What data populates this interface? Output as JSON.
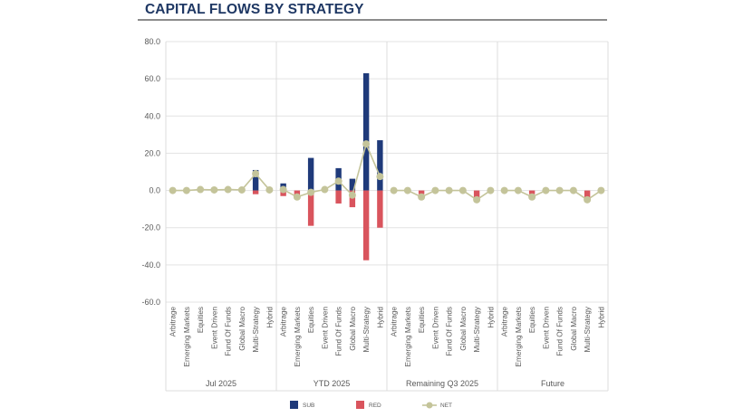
{
  "title": "CAPITAL FLOWS BY STRATEGY",
  "chart_data": {
    "type": "bar",
    "title": "CAPITAL FLOWS BY STRATEGY",
    "xlabel": "",
    "ylabel": "",
    "ylim": [
      -60,
      80
    ],
    "yticks": [
      80,
      60,
      40,
      20,
      0,
      -20,
      -40,
      -60
    ],
    "ytick_labels": [
      "80.0",
      "60.0",
      "40.0",
      "20.0",
      "0.0",
      "-20.0",
      "-40.0",
      "-60.0"
    ],
    "grid": true,
    "legend_position": "bottom",
    "groups": [
      "Jul 2025",
      "YTD 2025",
      "Remaining Q3 2025",
      "Future"
    ],
    "categories": [
      "Arbitrage",
      "Emerging Markets",
      "Equities",
      "Event Driven",
      "Fund Of Funds",
      "Global Macro",
      "Multi-Strategy",
      "Hybrid"
    ],
    "series": [
      {
        "name": "SUB",
        "kind": "bar",
        "color": "#1f3a7a",
        "values": [
          [
            0,
            0,
            0.5,
            0.3,
            0.5,
            0.3,
            11,
            0.3
          ],
          [
            3.8,
            0,
            17.5,
            0.5,
            12,
            6.3,
            63,
            27
          ],
          [
            0,
            0,
            0,
            0,
            0,
            0,
            0,
            0
          ],
          [
            0,
            0,
            0,
            0,
            0,
            0,
            0,
            0
          ]
        ]
      },
      {
        "name": "RED",
        "kind": "bar",
        "color": "#d9545d",
        "values": [
          [
            0,
            0,
            0,
            0,
            0,
            0,
            -2,
            0
          ],
          [
            -3,
            -2.5,
            -19,
            0,
            -7,
            -9,
            -37.5,
            -20
          ],
          [
            0,
            0,
            -2,
            0,
            0,
            0,
            -4,
            0
          ],
          [
            0,
            0,
            -2,
            0,
            0,
            0,
            -4,
            0
          ]
        ]
      },
      {
        "name": "NET",
        "kind": "line",
        "color": "#c4c49a",
        "values": [
          [
            0,
            0,
            0.5,
            0.3,
            0.5,
            0.3,
            9,
            0.3
          ],
          [
            0.5,
            -3.5,
            -1,
            0.5,
            5,
            -2.5,
            25,
            7.5
          ],
          [
            0,
            0,
            -3.5,
            0,
            0,
            0,
            -5,
            0
          ],
          [
            0,
            0,
            -3.5,
            0,
            0,
            0,
            -5,
            0
          ]
        ]
      }
    ],
    "legend": [
      "SUB",
      "RED",
      "NET"
    ]
  }
}
